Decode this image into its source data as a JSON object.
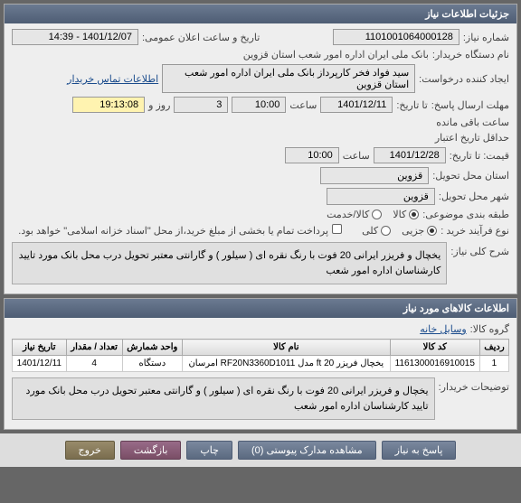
{
  "sections": {
    "details": "جزئیات اطلاعات نیاز",
    "goods_info": "اطلاعات کالاهای مورد نیاز"
  },
  "labels": {
    "need_no": "شماره نیاز:",
    "announce": "تاریخ و ساعت اعلان عمومی:",
    "buyer": "نام دستگاه خریدار:",
    "creator": "ایجاد کننده درخواست:",
    "contact": "اطلاعات تماس خریدار",
    "deadline": "مهلت ارسال پاسخ:",
    "day_hour": "روز و",
    "time": "ساعت",
    "remain": "ساعت باقی مانده",
    "until": "تا تاریخ:",
    "credit": "حداقل تاریخ اعتبار",
    "price_until": "قیمت: تا تاریخ:",
    "province": "استان محل تحویل:",
    "city": "شهر محل تحویل:",
    "category": "طبقه بندی موضوعی:",
    "service": "کالا/خدمت",
    "goods": "کالا",
    "purchase": "نوع فرآیند خرید :",
    "partial": "جزیی",
    "full": "کلی",
    "payment_note": "پرداخت تمام یا بخشی از مبلغ خرید،از محل \"اسناد خزانه اسلامی\" خواهد بود.",
    "desc_title": "شرح کلی نیاز:",
    "group": "گروه کالا:",
    "group_val": "وسایل خانه",
    "buyer_note": "توضیحات خریدار:"
  },
  "values": {
    "need_no": "1101001064000128",
    "announce": "1401/12/07 - 14:39",
    "buyer": "بانک ملی ایران اداره امور شعب استان قزوین",
    "creator": "سید فواد فخر کارپرداز بانک ملی ایران اداره امور شعب استان قزوین",
    "deadline_date": "1401/12/11",
    "deadline_time": "10:00",
    "days": "3",
    "remain_time": "19:13:08",
    "credit_date": "1401/12/28",
    "credit_time": "10:00",
    "province": "قزوین",
    "city": "قزوین",
    "desc": "یخچال و فریزر ایرانی 20 فوت با رنگ نقره ای ( سیلور ) و گارانتی معتبر تحویل درب محل بانک مورد تایید کارشناسان اداره امور شعب",
    "buyer_note": "یخچال و فریزر ایرانی 20 فوت با رنگ نقره ای ( سیلور ) و گارانتی معتبر تحویل درب محل بانک مورد تایید کارشناسان اداره امور شعب"
  },
  "table": {
    "columns": [
      "ردیف",
      "کد کالا",
      "نام کالا",
      "واحد شمارش",
      "تعداد / مقدار",
      "تاریخ نیاز"
    ],
    "rows": [
      [
        "1",
        "1161300016910015",
        "یخچال فریزر ft 20 مدل RF20N3360D1011 امرسان",
        "دستگاه",
        "4",
        "1401/12/11"
      ]
    ]
  },
  "buttons": {
    "respond": "پاسخ به نیاز",
    "attach": "مشاهده مدارک پیوستی (0)",
    "print": "چاپ",
    "back": "بازگشت",
    "exit": "خروج"
  }
}
